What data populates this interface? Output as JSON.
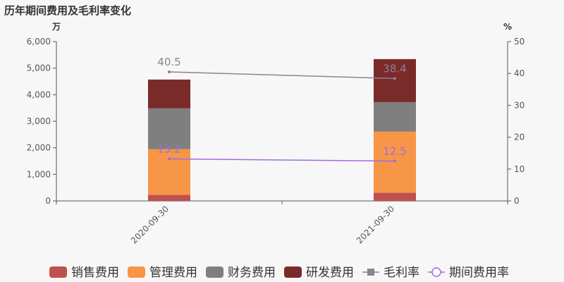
{
  "chart_data": {
    "type": "bar",
    "title": "历年期间费用及毛利率变化",
    "categories": [
      "2020-09-30",
      "2021-09-30"
    ],
    "y_left": {
      "unit": "万",
      "ylim": [
        0,
        6000
      ],
      "ticks": [
        "0",
        "1,000",
        "2,000",
        "3,000",
        "4,000",
        "5,000",
        "6,000"
      ]
    },
    "y_right": {
      "unit": "%",
      "ylim": [
        0,
        50
      ],
      "ticks": [
        "0",
        "10",
        "20",
        "30",
        "40",
        "50"
      ]
    },
    "series": [
      {
        "name": "销售费用",
        "type": "bar",
        "stack": "cost",
        "color": "#c0504d",
        "values": [
          230,
          310
        ]
      },
      {
        "name": "管理费用",
        "type": "bar",
        "stack": "cost",
        "color": "#f79646",
        "values": [
          1720,
          2300
        ]
      },
      {
        "name": "财务费用",
        "type": "bar",
        "stack": "cost",
        "color": "#7f7f7f",
        "values": [
          1540,
          1110
        ]
      },
      {
        "name": "研发费用",
        "type": "bar",
        "stack": "cost",
        "color": "#7b2a2a",
        "values": [
          1080,
          1620
        ]
      },
      {
        "name": "毛利率",
        "type": "line",
        "axis": "right",
        "color": "#8e8095",
        "marker": "square",
        "values": [
          40.5,
          38.4
        ]
      },
      {
        "name": "期间费用率",
        "type": "line",
        "axis": "right",
        "color": "#a06be0",
        "marker": "circle",
        "values": [
          13.2,
          12.5
        ]
      }
    ],
    "grid": false,
    "legend": "bottom"
  }
}
